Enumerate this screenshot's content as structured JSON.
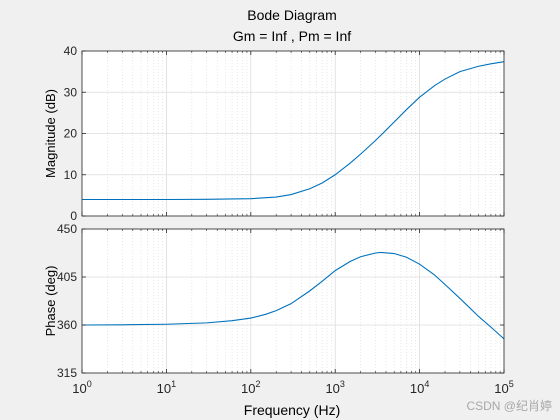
{
  "chart_data": {
    "type": "line",
    "title": "Bode Diagram",
    "subtitle": "Gm = Inf ,  Pm = Inf",
    "xlabel": "Frequency  (Hz)",
    "x_scale": "log",
    "xlim": [
      1,
      100000
    ],
    "x_ticks": [
      {
        "base": "10",
        "exp": "0"
      },
      {
        "base": "10",
        "exp": "1"
      },
      {
        "base": "10",
        "exp": "2"
      },
      {
        "base": "10",
        "exp": "3"
      },
      {
        "base": "10",
        "exp": "4"
      },
      {
        "base": "10",
        "exp": "5"
      }
    ],
    "x_tick_values": [
      1,
      10,
      100,
      1000,
      10000,
      100000
    ],
    "grid": true,
    "line_color": "#0072bd",
    "panels": [
      {
        "ylabel": "Magnitude (dB)",
        "ylim": [
          0,
          40
        ],
        "yticks": [
          0,
          10,
          20,
          30,
          40
        ],
        "ytick_labels": [
          "0",
          "10",
          "20",
          "30",
          "40"
        ],
        "x": [
          1,
          10,
          30,
          100,
          200,
          300,
          500,
          700,
          1000,
          1500,
          2000,
          3000,
          4000,
          5000,
          7000,
          10000,
          15000,
          20000,
          30000,
          50000,
          70000,
          100000
        ],
        "y": [
          4.0,
          4.0,
          4.05,
          4.2,
          4.6,
          5.2,
          6.6,
          8.0,
          10.0,
          12.8,
          15.0,
          18.3,
          20.8,
          22.8,
          25.8,
          28.8,
          31.6,
          33.2,
          35.0,
          36.3,
          36.9,
          37.4
        ]
      },
      {
        "ylabel": "Phase (deg)",
        "ylim": [
          315,
          450
        ],
        "yticks": [
          315,
          360,
          405,
          450
        ],
        "ytick_labels": [
          "315",
          "360",
          "405",
          "450"
        ],
        "x": [
          1,
          3,
          10,
          30,
          60,
          100,
          150,
          200,
          300,
          500,
          700,
          1000,
          1500,
          2000,
          3000,
          3500,
          5000,
          7000,
          10000,
          15000,
          20000,
          30000,
          50000,
          70000,
          100000
        ],
        "y": [
          360,
          360.2,
          360.7,
          362.0,
          364.0,
          366.5,
          370.0,
          373.5,
          380.0,
          392.0,
          401.0,
          411.0,
          419.5,
          424.0,
          427.5,
          428.0,
          427.0,
          423.5,
          417.0,
          407.0,
          398.0,
          385.0,
          368.0,
          358.0,
          347.0
        ]
      }
    ]
  },
  "watermark": "CSDN @纪肖婷"
}
